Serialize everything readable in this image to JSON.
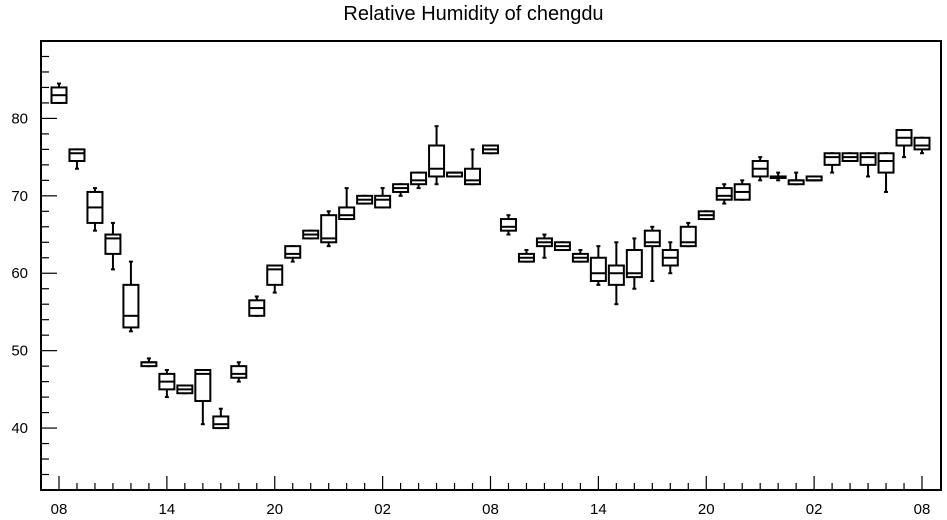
{
  "chart_data": {
    "type": "boxplot",
    "title": "Relative Humidity of chengdu",
    "xlabel": "",
    "ylabel": "",
    "ylim": [
      32,
      90
    ],
    "y_ticks": [
      40,
      50,
      60,
      70,
      80
    ],
    "x_tick_labels": [
      "08",
      "14",
      "20",
      "02",
      "08",
      "14",
      "20",
      "02",
      "08"
    ],
    "grid": false,
    "legend": "none",
    "series_color": "#000000",
    "boxes": [
      {
        "x": 0,
        "whisker_low": 82.0,
        "q1": 82.0,
        "median": 83.0,
        "q3": 84.0,
        "whisker_high": 84.5
      },
      {
        "x": 1,
        "whisker_low": 73.5,
        "q1": 74.5,
        "median": 75.5,
        "q3": 76.0,
        "whisker_high": 76.0
      },
      {
        "x": 2,
        "whisker_low": 65.5,
        "q1": 66.5,
        "median": 68.5,
        "q3": 70.5,
        "whisker_high": 71.0
      },
      {
        "x": 3,
        "whisker_low": 60.5,
        "q1": 62.5,
        "median": 64.5,
        "q3": 65.0,
        "whisker_high": 66.5
      },
      {
        "x": 4,
        "whisker_low": 52.5,
        "q1": 53.0,
        "median": 54.5,
        "q3": 58.5,
        "whisker_high": 61.5
      },
      {
        "x": 5,
        "whisker_low": 48.0,
        "q1": 48.0,
        "median": 48.5,
        "q3": 48.5,
        "whisker_high": 49.0
      },
      {
        "x": 6,
        "whisker_low": 44.0,
        "q1": 45.0,
        "median": 46.0,
        "q3": 47.0,
        "whisker_high": 47.5
      },
      {
        "x": 7,
        "whisker_low": 44.5,
        "q1": 44.5,
        "median": 45.0,
        "q3": 45.5,
        "whisker_high": 45.5
      },
      {
        "x": 8,
        "whisker_low": 40.5,
        "q1": 43.5,
        "median": 47.0,
        "q3": 47.5,
        "whisker_high": 47.5
      },
      {
        "x": 9,
        "whisker_low": 40.0,
        "q1": 40.0,
        "median": 40.5,
        "q3": 41.5,
        "whisker_high": 42.5
      },
      {
        "x": 10,
        "whisker_low": 46.0,
        "q1": 46.5,
        "median": 47.0,
        "q3": 48.0,
        "whisker_high": 48.5
      },
      {
        "x": 11,
        "whisker_low": 54.5,
        "q1": 54.5,
        "median": 55.5,
        "q3": 56.5,
        "whisker_high": 57.0
      },
      {
        "x": 12,
        "whisker_low": 57.5,
        "q1": 58.5,
        "median": 60.5,
        "q3": 61.0,
        "whisker_high": 61.0
      },
      {
        "x": 13,
        "whisker_low": 61.5,
        "q1": 62.0,
        "median": 62.5,
        "q3": 63.5,
        "whisker_high": 63.5
      },
      {
        "x": 14,
        "whisker_low": 64.5,
        "q1": 64.5,
        "median": 65.0,
        "q3": 65.5,
        "whisker_high": 65.5
      },
      {
        "x": 15,
        "whisker_low": 63.5,
        "q1": 64.0,
        "median": 64.5,
        "q3": 67.5,
        "whisker_high": 68.0
      },
      {
        "x": 16,
        "whisker_low": 67.0,
        "q1": 67.0,
        "median": 67.5,
        "q3": 68.5,
        "whisker_high": 71.0
      },
      {
        "x": 17,
        "whisker_low": 69.0,
        "q1": 69.0,
        "median": 69.5,
        "q3": 70.0,
        "whisker_high": 70.0
      },
      {
        "x": 18,
        "whisker_low": 68.5,
        "q1": 68.5,
        "median": 69.5,
        "q3": 70.0,
        "whisker_high": 71.0
      },
      {
        "x": 19,
        "whisker_low": 70.0,
        "q1": 70.5,
        "median": 71.0,
        "q3": 71.5,
        "whisker_high": 71.5
      },
      {
        "x": 20,
        "whisker_low": 71.0,
        "q1": 71.5,
        "median": 72.0,
        "q3": 73.0,
        "whisker_high": 73.0
      },
      {
        "x": 21,
        "whisker_low": 71.5,
        "q1": 72.5,
        "median": 73.5,
        "q3": 76.5,
        "whisker_high": 79.0
      },
      {
        "x": 22,
        "whisker_low": 72.5,
        "q1": 72.5,
        "median": 73.0,
        "q3": 73.0,
        "whisker_high": 73.0
      },
      {
        "x": 23,
        "whisker_low": 71.5,
        "q1": 71.5,
        "median": 72.0,
        "q3": 73.5,
        "whisker_high": 76.0
      },
      {
        "x": 24,
        "whisker_low": 75.5,
        "q1": 75.5,
        "median": 76.0,
        "q3": 76.5,
        "whisker_high": 76.5
      },
      {
        "x": 25,
        "whisker_low": 65.0,
        "q1": 65.5,
        "median": 66.0,
        "q3": 67.0,
        "whisker_high": 67.5
      },
      {
        "x": 26,
        "whisker_low": 61.5,
        "q1": 61.5,
        "median": 62.0,
        "q3": 62.5,
        "whisker_high": 63.0
      },
      {
        "x": 27,
        "whisker_low": 62.0,
        "q1": 63.5,
        "median": 64.0,
        "q3": 64.5,
        "whisker_high": 65.0
      },
      {
        "x": 28,
        "whisker_low": 63.0,
        "q1": 63.0,
        "median": 63.5,
        "q3": 64.0,
        "whisker_high": 64.0
      },
      {
        "x": 29,
        "whisker_low": 61.5,
        "q1": 61.5,
        "median": 62.0,
        "q3": 62.5,
        "whisker_high": 63.0
      },
      {
        "x": 30,
        "whisker_low": 58.5,
        "q1": 59.0,
        "median": 60.0,
        "q3": 62.0,
        "whisker_high": 63.5
      },
      {
        "x": 31,
        "whisker_low": 56.0,
        "q1": 58.5,
        "median": 60.0,
        "q3": 61.0,
        "whisker_high": 64.0
      },
      {
        "x": 32,
        "whisker_low": 58.0,
        "q1": 59.5,
        "median": 60.0,
        "q3": 63.0,
        "whisker_high": 64.5
      },
      {
        "x": 33,
        "whisker_low": 59.0,
        "q1": 63.5,
        "median": 64.0,
        "q3": 65.5,
        "whisker_high": 66.0
      },
      {
        "x": 34,
        "whisker_low": 60.0,
        "q1": 61.0,
        "median": 62.0,
        "q3": 63.0,
        "whisker_high": 64.0
      },
      {
        "x": 35,
        "whisker_low": 63.5,
        "q1": 63.5,
        "median": 64.0,
        "q3": 66.0,
        "whisker_high": 66.5
      },
      {
        "x": 36,
        "whisker_low": 67.0,
        "q1": 67.0,
        "median": 67.5,
        "q3": 68.0,
        "whisker_high": 68.0
      },
      {
        "x": 37,
        "whisker_low": 69.0,
        "q1": 69.5,
        "median": 70.0,
        "q3": 71.0,
        "whisker_high": 71.5
      },
      {
        "x": 38,
        "whisker_low": 69.5,
        "q1": 69.5,
        "median": 70.5,
        "q3": 71.5,
        "whisker_high": 72.0
      },
      {
        "x": 39,
        "whisker_low": 72.0,
        "q1": 72.5,
        "median": 73.5,
        "q3": 74.5,
        "whisker_high": 75.0
      },
      {
        "x": 40,
        "whisker_low": 72.0,
        "q1": 72.5,
        "median": 72.5,
        "q3": 72.5,
        "whisker_high": 73.0
      },
      {
        "x": 41,
        "whisker_low": 71.5,
        "q1": 71.5,
        "median": 72.0,
        "q3": 72.0,
        "whisker_high": 73.0
      },
      {
        "x": 42,
        "whisker_low": 72.0,
        "q1": 72.0,
        "median": 72.0,
        "q3": 72.5,
        "whisker_high": 72.5
      },
      {
        "x": 43,
        "whisker_low": 73.0,
        "q1": 74.0,
        "median": 75.0,
        "q3": 75.5,
        "whisker_high": 75.5
      },
      {
        "x": 44,
        "whisker_low": 74.5,
        "q1": 74.5,
        "median": 75.0,
        "q3": 75.5,
        "whisker_high": 75.5
      },
      {
        "x": 45,
        "whisker_low": 72.5,
        "q1": 74.0,
        "median": 75.0,
        "q3": 75.5,
        "whisker_high": 75.5
      },
      {
        "x": 46,
        "whisker_low": 70.5,
        "q1": 73.0,
        "median": 74.5,
        "q3": 75.5,
        "whisker_high": 75.5
      },
      {
        "x": 47,
        "whisker_low": 75.0,
        "q1": 76.5,
        "median": 77.5,
        "q3": 78.5,
        "whisker_high": 78.5
      },
      {
        "x": 48,
        "whisker_low": 75.5,
        "q1": 76.0,
        "median": 76.5,
        "q3": 77.5,
        "whisker_high": 77.5
      }
    ]
  }
}
